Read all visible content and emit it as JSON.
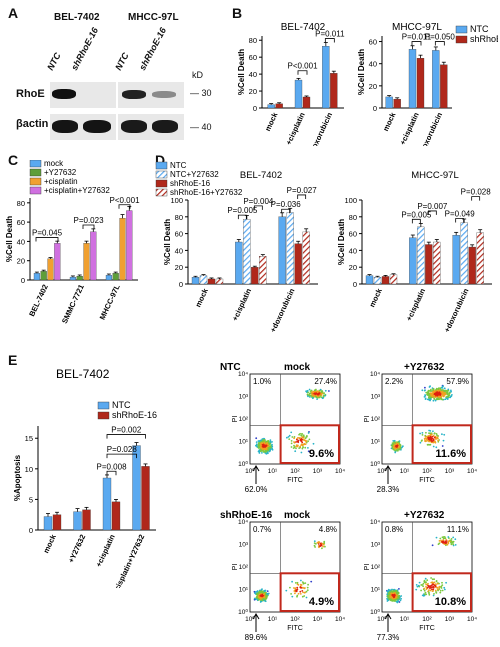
{
  "panels": {
    "A": "A",
    "B": "B",
    "C": "C",
    "D": "D",
    "E": "E"
  },
  "blot": {
    "title_left": "BEL-7402",
    "title_right": "MHCC-97L",
    "lanes": [
      "NTC",
      "shRhoE-16",
      "NTC",
      "shRhoE-16"
    ],
    "kd_unit": "kD",
    "rows": [
      {
        "label": "RhoE",
        "marker": "30"
      },
      {
        "label": "βactin",
        "marker": "40"
      }
    ]
  },
  "panelB": {
    "legend": [
      "NTC",
      "shRhoE-16"
    ],
    "colors": {
      "NTC": "#5aa9f0",
      "sh": "#b0281b"
    },
    "bel": {
      "title": "BEL-7402",
      "ylabel": "%Cell Death",
      "yticks": [
        "0",
        "20",
        "40",
        "60",
        "80"
      ],
      "categories": [
        "mock",
        "+cisplatin",
        "+doxorubicin"
      ],
      "ntc": [
        4,
        33,
        73
      ],
      "sh": [
        5,
        13,
        41
      ],
      "pvals": [
        "P<0.001",
        "P=0.011"
      ]
    },
    "mhcc": {
      "title": "MHCC-97L",
      "ylabel": "%Cell Death",
      "yticks": [
        "0",
        "20",
        "40",
        "60"
      ],
      "categories": [
        "mock",
        "+cisplatin",
        "+doxorubicin"
      ],
      "ntc": [
        10,
        53,
        52
      ],
      "sh": [
        8,
        45,
        39
      ],
      "pvals": [
        "P=0.011",
        "P=0.050"
      ]
    }
  },
  "panelC": {
    "ylabel": "%Cell Death",
    "yticks": [
      "0",
      "20",
      "40",
      "60",
      "80"
    ],
    "legend": [
      "mock",
      "+Y27632",
      "+cisplatin",
      "+cisplatin+Y27632"
    ],
    "colors": [
      "#5aa9f0",
      "#5e9e3a",
      "#f0a030",
      "#d070e0"
    ],
    "categories": [
      "BEL-7402",
      "SMMC-7721",
      "MHCC-97L"
    ],
    "values": [
      [
        7,
        9,
        22,
        38
      ],
      [
        3,
        4,
        38,
        50
      ],
      [
        5,
        7,
        64,
        72
      ]
    ],
    "pvals": [
      "P=0.045",
      "P=0.023",
      "P<0.001"
    ]
  },
  "panelD": {
    "legend": [
      "NTC",
      "NTC+Y27632",
      "shRhoE-16",
      "shRhoE-16+Y27632"
    ],
    "bel": {
      "title": "BEL-7402",
      "ylabel": "%Cell Death",
      "yticks": [
        "0",
        "20",
        "40",
        "60",
        "80",
        "100"
      ],
      "categories": [
        "mock",
        "+cisplatin",
        "+doxorubicin"
      ],
      "values": [
        [
          8,
          10,
          6,
          6
        ],
        [
          50,
          77,
          20,
          33
        ],
        [
          80,
          85,
          48,
          62
        ]
      ],
      "pvals": [
        "P=0.005",
        "P=0.004",
        "P=0.036",
        "P=0.027"
      ]
    },
    "mhcc": {
      "title": "MHCC-97L",
      "ylabel": "%Cell Death",
      "yticks": [
        "0",
        "20",
        "40",
        "60",
        "80",
        "100"
      ],
      "categories": [
        "mock",
        "+cisplatin",
        "+doxorubicin"
      ],
      "values": [
        [
          10,
          8,
          9,
          11
        ],
        [
          55,
          68,
          47,
          50
        ],
        [
          58,
          73,
          44,
          61
        ]
      ],
      "pvals": [
        "P=0.005",
        "P=0.007",
        "P=0.049",
        "P=0.028"
      ]
    }
  },
  "panelE": {
    "title": "BEL-7402",
    "ylabel": "%Apoptosis",
    "yticks": [
      "0",
      "5",
      "10",
      "15"
    ],
    "legend": [
      "NTC",
      "shRhoE-16"
    ],
    "categories": [
      "mock",
      "+Y27632",
      "+cisplatin",
      "+cisplatin+Y27632"
    ],
    "ntc": [
      2.2,
      3.0,
      8.5,
      13.8
    ],
    "sh": [
      2.5,
      3.3,
      4.6,
      10.4
    ],
    "pvals": [
      "P=0.008",
      "P=0.028",
      "P=0.002"
    ]
  },
  "flow": {
    "row_labels": [
      "NTC",
      "shRhoE-16"
    ],
    "col_labels": [
      "mock",
      "+Y27632"
    ],
    "xlabel": "FITC",
    "ylabel": "PI",
    "ticks": [
      "10⁰",
      "10¹",
      "10²",
      "10³",
      "10⁴"
    ],
    "plots": [
      {
        "ul": "1.0%",
        "ur": "27.4%",
        "lr": "9.6%",
        "ll": "62.0%"
      },
      {
        "ul": "2.2%",
        "ur": "57.9%",
        "lr": "11.6%",
        "ll": "28.3%"
      },
      {
        "ul": "0.7%",
        "ur": "4.8%",
        "lr": "4.9%",
        "ll": "89.6%"
      },
      {
        "ul": "0.8%",
        "ur": "11.1%",
        "lr": "10.8%",
        "ll": "77.3%"
      }
    ]
  }
}
